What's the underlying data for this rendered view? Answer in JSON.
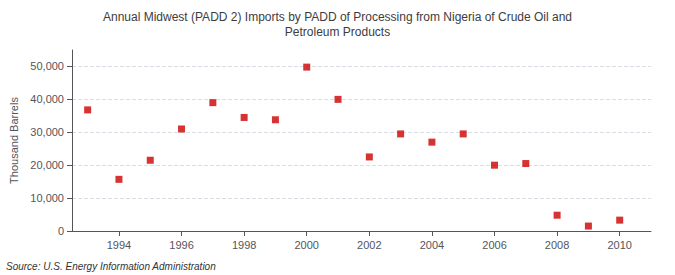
{
  "chart_data": {
    "type": "scatter",
    "title": "Annual Midwest (PADD 2) Imports by PADD of Processing from Nigeria of Crude Oil and\nPetroleum Products",
    "ylabel": "Thousand Barrels",
    "source": "Source: U.S. Energy Information Administration",
    "x": [
      1993,
      1994,
      1995,
      1996,
      1997,
      1998,
      1999,
      2000,
      2001,
      2002,
      2003,
      2004,
      2005,
      2006,
      2007,
      2008,
      2009,
      2010
    ],
    "values": [
      36800,
      15700,
      21500,
      31000,
      39000,
      34500,
      33800,
      49800,
      40000,
      22500,
      29500,
      27000,
      29500,
      20000,
      20500,
      4800,
      1500,
      3300
    ],
    "color": "#cc0000",
    "marker": "square",
    "xlim": [
      1992.5,
      2011
    ],
    "xticks": [
      1994,
      1996,
      1998,
      2000,
      2002,
      2004,
      2006,
      2008,
      2010
    ],
    "ylim": [
      0,
      55000
    ],
    "yticks": [
      0,
      {
        "value": 10000,
        "label": "10,000"
      },
      {
        "value": 20000,
        "label": "20,000"
      },
      {
        "value": 30000,
        "label": "30,000"
      },
      {
        "value": 40000,
        "label": "40,000"
      },
      {
        "value": 50000,
        "label": "50,000"
      }
    ],
    "grid": true
  }
}
